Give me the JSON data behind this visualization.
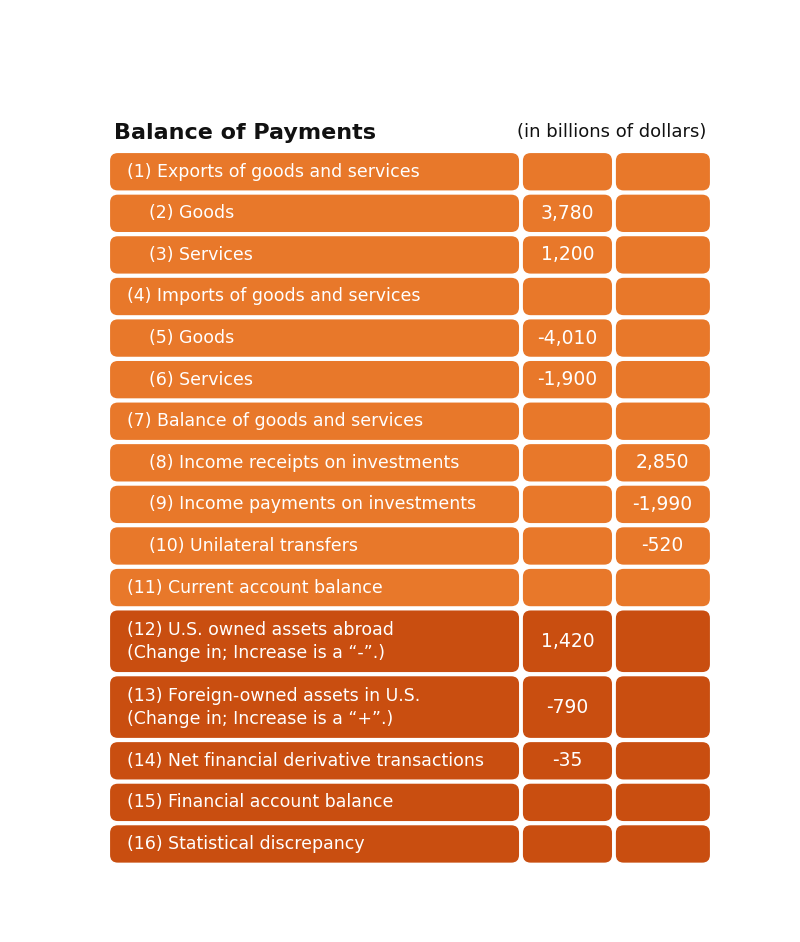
{
  "title_left": "Balance of Payments",
  "title_right": "(in billions of dollars)",
  "bg_color": "#ffffff",
  "orange_light": "#E8782A",
  "orange_dark": "#C94E10",
  "rows": [
    {
      "id": 1,
      "label": "(1) Exports of goods and services",
      "col1": "",
      "col2": "",
      "dark": false,
      "tall": false
    },
    {
      "id": 2,
      "label": "    (2) Goods",
      "col1": "3,780",
      "col2": "",
      "dark": false,
      "tall": false
    },
    {
      "id": 3,
      "label": "    (3) Services",
      "col1": "1,200",
      "col2": "",
      "dark": false,
      "tall": false
    },
    {
      "id": 4,
      "label": "(4) Imports of goods and services",
      "col1": "",
      "col2": "",
      "dark": false,
      "tall": false
    },
    {
      "id": 5,
      "label": "    (5) Goods",
      "col1": "-4,010",
      "col2": "",
      "dark": false,
      "tall": false
    },
    {
      "id": 6,
      "label": "    (6) Services",
      "col1": "-1,900",
      "col2": "",
      "dark": false,
      "tall": false
    },
    {
      "id": 7,
      "label": "(7) Balance of goods and services",
      "col1": "",
      "col2": "",
      "dark": false,
      "tall": false
    },
    {
      "id": 8,
      "label": "    (8) Income receipts on investments",
      "col1": "",
      "col2": "2,850",
      "dark": false,
      "tall": false
    },
    {
      "id": 9,
      "label": "    (9) Income payments on investments",
      "col1": "",
      "col2": "-1,990",
      "dark": false,
      "tall": false
    },
    {
      "id": 10,
      "label": "    (10) Unilateral transfers",
      "col1": "",
      "col2": "-520",
      "dark": false,
      "tall": false
    },
    {
      "id": 11,
      "label": "(11) Current account balance",
      "col1": "",
      "col2": "",
      "dark": false,
      "tall": false
    },
    {
      "id": 12,
      "label": "(12) U.S. owned assets abroad\n(Change in; Increase is a “-”.)",
      "col1": "1,420",
      "col2": "",
      "dark": true,
      "tall": true
    },
    {
      "id": 13,
      "label": "(13) Foreign-owned assets in U.S.\n(Change in; Increase is a “+”.)",
      "col1": "-790",
      "col2": "",
      "dark": true,
      "tall": true
    },
    {
      "id": 14,
      "label": "(14) Net financial derivative transactions",
      "col1": "-35",
      "col2": "",
      "dark": true,
      "tall": false
    },
    {
      "id": 15,
      "label": "(15) Financial account balance",
      "col1": "",
      "col2": "",
      "dark": true,
      "tall": false
    },
    {
      "id": 16,
      "label": "(16) Statistical discrepancy",
      "col1": "",
      "col2": "",
      "dark": true,
      "tall": false
    }
  ]
}
